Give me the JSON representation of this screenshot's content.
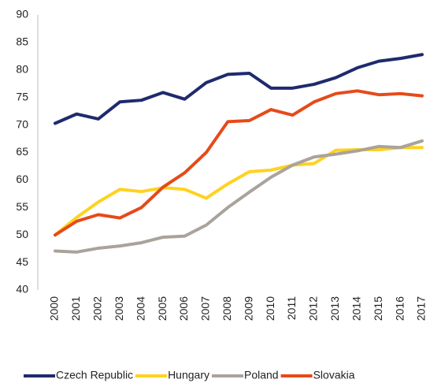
{
  "chart_data": {
    "type": "line",
    "categories": [
      "2000",
      "2001",
      "2002",
      "2003",
      "2004",
      "2005",
      "2006",
      "2007",
      "2008",
      "2009",
      "2010",
      "2011",
      "2012",
      "2013",
      "2014",
      "2015",
      "2016",
      "2017"
    ],
    "series": [
      {
        "name": "Czech Republic",
        "color": "#1f2a6e",
        "values": [
          70.3,
          72.0,
          71.1,
          74.2,
          74.5,
          75.9,
          74.7,
          77.7,
          79.2,
          79.4,
          76.7,
          76.7,
          77.4,
          78.6,
          80.4,
          81.6,
          82.1,
          82.8
        ]
      },
      {
        "name": "Hungary",
        "color": "#ffd21f",
        "values": [
          50.0,
          53.2,
          56.0,
          58.3,
          57.9,
          58.6,
          58.3,
          56.7,
          59.3,
          61.5,
          61.8,
          62.7,
          63.0,
          65.4,
          65.5,
          65.5,
          65.9,
          65.9
        ]
      },
      {
        "name": "Poland",
        "color": "#aaa39b",
        "values": [
          47.1,
          46.9,
          47.6,
          48.0,
          48.6,
          49.6,
          49.8,
          51.8,
          55.0,
          57.8,
          60.5,
          62.7,
          64.2,
          64.7,
          65.3,
          66.1,
          65.9,
          67.1
        ]
      },
      {
        "name": "Slovakia",
        "color": "#e64a19",
        "values": [
          50.0,
          52.5,
          53.7,
          53.1,
          55.0,
          58.7,
          61.3,
          65.0,
          70.6,
          70.8,
          72.8,
          71.8,
          74.2,
          75.7,
          76.2,
          75.5,
          75.7,
          75.3
        ]
      }
    ],
    "ylim": [
      40,
      90
    ],
    "yticks": [
      40,
      45,
      50,
      55,
      60,
      65,
      70,
      75,
      80,
      85,
      90
    ],
    "legend": "bottom"
  }
}
